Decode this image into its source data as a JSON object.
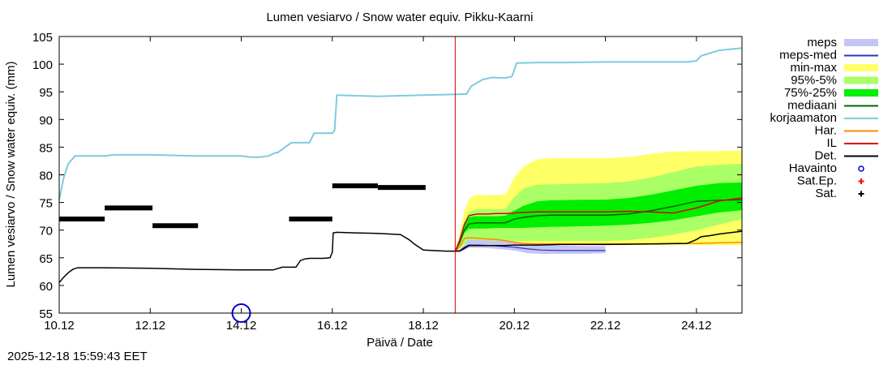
{
  "timestamp": "2025-12-18 15:59:43 EET",
  "chart_data": {
    "type": "line",
    "title": "Lumen vesiarvo / Snow water equiv.  Pikku-Kaarni",
    "xlabel": "Päivä / Date",
    "ylabel": "Lumen vesiarvo / Snow water equiv. (mm)",
    "ylim": [
      55,
      105
    ],
    "xlim": [
      0,
      15
    ],
    "yticks": [
      55,
      60,
      65,
      70,
      75,
      80,
      85,
      90,
      95,
      100,
      105
    ],
    "xticks": [
      {
        "x": 0,
        "label": "10.12"
      },
      {
        "x": 2,
        "label": "12.12"
      },
      {
        "x": 4,
        "label": "14.12"
      },
      {
        "x": 6,
        "label": "16.12"
      },
      {
        "x": 8,
        "label": "18.12"
      },
      {
        "x": 10,
        "label": "20.12"
      },
      {
        "x": 12,
        "label": "22.12"
      },
      {
        "x": 14,
        "label": "24.12"
      }
    ],
    "now_x": 8.7,
    "legend": [
      {
        "key": "meps",
        "label": "meps",
        "kind": "box",
        "color": "#c5c5f5"
      },
      {
        "key": "meps_med",
        "label": "meps-med",
        "kind": "line",
        "color": "#3333bb"
      },
      {
        "key": "minmax",
        "label": "min-max",
        "kind": "box",
        "color": "#ffff66"
      },
      {
        "key": "p95_5",
        "label": "95%-5%",
        "kind": "box",
        "color": "#aaff66"
      },
      {
        "key": "p75_25",
        "label": "75%-25%",
        "kind": "box",
        "color": "#00ee00"
      },
      {
        "key": "mediaani",
        "label": "mediaani",
        "kind": "line",
        "color": "#006600"
      },
      {
        "key": "korjaamaton",
        "label": "korjaamaton",
        "kind": "line",
        "color": "#7ecbe0"
      },
      {
        "key": "har",
        "label": "Har.",
        "kind": "line",
        "color": "#ff8800"
      },
      {
        "key": "il",
        "label": "IL",
        "kind": "line",
        "color": "#dd0000"
      },
      {
        "key": "det",
        "label": "Det.",
        "kind": "line",
        "color": "#000000"
      },
      {
        "key": "havainto",
        "label": "Havainto",
        "kind": "circle",
        "color": "#0000cc"
      },
      {
        "key": "satep",
        "label": "Sat.Ep.",
        "kind": "plus",
        "color": "#ff0000"
      },
      {
        "key": "sat",
        "label": "Sat.",
        "kind": "plus",
        "color": "#000000"
      }
    ],
    "series": {
      "korjaamaton": {
        "x": [
          0,
          0.1,
          0.2,
          0.35,
          0.5,
          1.0,
          1.2,
          2.0,
          3.0,
          4.0,
          4.2,
          4.4,
          4.6,
          4.75,
          4.8,
          5.1,
          5.2,
          5.5,
          5.6,
          6.0,
          6.05,
          6.1,
          6.5,
          7.0,
          8.0,
          8.5,
          8.95,
          9.05,
          9.3,
          9.5,
          9.8,
          9.95,
          10.05,
          10.5,
          11.0,
          12.0,
          13.0,
          13.8,
          14.0,
          14.1,
          14.3,
          14.5,
          15.0
        ],
        "y": [
          75.5,
          79.5,
          82.0,
          83.4,
          83.4,
          83.4,
          83.6,
          83.6,
          83.4,
          83.4,
          83.2,
          83.2,
          83.4,
          84.0,
          84.0,
          85.8,
          85.8,
          85.8,
          87.5,
          87.5,
          88.0,
          94.4,
          94.3,
          94.2,
          94.4,
          94.5,
          94.6,
          96.0,
          97.2,
          97.6,
          97.5,
          97.8,
          100.2,
          100.3,
          100.3,
          100.4,
          100.4,
          100.4,
          100.6,
          101.5,
          102.0,
          102.5,
          102.9
        ]
      },
      "det": {
        "x": [
          0,
          0.1,
          0.2,
          0.3,
          0.4,
          0.5,
          1.0,
          2.0,
          3.0,
          4.0,
          4.7,
          4.9,
          4.95,
          5.2,
          5.3,
          5.4,
          5.5,
          5.8,
          5.95,
          6.0,
          6.02,
          6.1,
          6.5,
          7.0,
          7.5,
          7.7,
          7.8,
          8.0,
          8.5,
          8.8,
          9.0,
          9.3,
          9.5,
          9.8,
          10.0,
          10.5,
          11.0,
          12.0,
          13.0,
          13.8,
          14.0,
          14.1,
          14.3,
          14.5,
          15.0
        ],
        "y": [
          60.5,
          61.5,
          62.3,
          62.9,
          63.2,
          63.2,
          63.2,
          63.1,
          62.9,
          62.8,
          62.8,
          63.3,
          63.3,
          63.3,
          64.5,
          64.8,
          64.9,
          64.9,
          65.0,
          66.0,
          69.5,
          69.6,
          69.5,
          69.4,
          69.2,
          68.2,
          67.5,
          66.4,
          66.2,
          66.2,
          67.2,
          67.2,
          67.2,
          67.2,
          67.3,
          67.3,
          67.4,
          67.4,
          67.5,
          67.6,
          68.3,
          68.8,
          69.0,
          69.3,
          69.8
        ]
      },
      "meps_band": {
        "x": [
          8.7,
          8.8,
          8.9,
          9.0,
          9.2,
          9.5,
          10.0,
          10.3,
          10.6,
          11.0,
          11.5,
          12.0
        ],
        "lo": [
          66.2,
          66.2,
          66.4,
          66.8,
          66.8,
          66.7,
          66.3,
          65.8,
          65.7,
          65.7,
          65.7,
          65.8
        ],
        "hi": [
          66.2,
          66.4,
          67.3,
          68.3,
          68.2,
          68.1,
          67.9,
          67.6,
          67.4,
          67.2,
          67.1,
          67.1
        ]
      },
      "meps_med": {
        "x": [
          8.7,
          8.8,
          8.9,
          9.0,
          9.2,
          9.5,
          10.0,
          10.3,
          10.6,
          11.0,
          11.5,
          12.0
        ],
        "y": [
          66.2,
          66.3,
          66.9,
          67.3,
          67.3,
          67.2,
          66.9,
          66.6,
          66.4,
          66.3,
          66.3,
          66.3
        ]
      },
      "ens_x": [
        8.7,
        8.8,
        8.9,
        9.0,
        9.1,
        9.2,
        9.4,
        9.6,
        9.8,
        10.0,
        10.2,
        10.5,
        10.8,
        11.0,
        11.5,
        12.0,
        12.5,
        13.0,
        13.5,
        14.0,
        14.5,
        15.0
      ],
      "minmax_lo": [
        66.2,
        66.6,
        67.2,
        67.3,
        67.3,
        67.3,
        67.3,
        67.3,
        67.3,
        67.3,
        67.3,
        67.3,
        67.3,
        67.3,
        67.3,
        67.3,
        67.3,
        67.3,
        67.3,
        67.3,
        67.3,
        67.3
      ],
      "minmax_hi": [
        66.2,
        69.5,
        73.5,
        75.5,
        76.2,
        76.4,
        76.3,
        76.4,
        76.4,
        79.5,
        81.5,
        82.8,
        83.0,
        83.0,
        83.0,
        83.0,
        83.2,
        83.8,
        84.2,
        84.3,
        84.3,
        84.4
      ],
      "p95_lo": [
        66.2,
        66.8,
        67.5,
        67.6,
        67.7,
        67.8,
        67.8,
        67.9,
        67.9,
        68.0,
        68.0,
        68.0,
        68.0,
        68.0,
        68.0,
        68.0,
        68.2,
        68.6,
        69.2,
        70.0,
        71.0,
        72.0
      ],
      "p95_hi": [
        66.2,
        68.8,
        71.5,
        73.2,
        73.6,
        73.8,
        73.8,
        73.8,
        73.8,
        76.0,
        77.5,
        78.2,
        78.3,
        78.3,
        78.4,
        78.5,
        78.8,
        79.5,
        80.5,
        81.5,
        81.8,
        82.0
      ],
      "p75_lo": [
        66.2,
        67.5,
        69.5,
        70.2,
        70.3,
        70.3,
        70.3,
        70.4,
        70.4,
        70.4,
        70.4,
        70.5,
        70.6,
        70.6,
        70.7,
        70.8,
        71.0,
        71.3,
        71.8,
        72.5,
        73.2,
        73.6
      ],
      "p75_hi": [
        66.2,
        68.5,
        71.3,
        72.3,
        72.5,
        72.5,
        72.5,
        72.5,
        72.6,
        73.5,
        74.4,
        75.2,
        75.4,
        75.4,
        75.5,
        75.5,
        75.8,
        76.4,
        77.2,
        78.0,
        78.5,
        78.6
      ],
      "mediaani": [
        66.2,
        67.8,
        70.0,
        71.1,
        71.2,
        71.3,
        71.3,
        71.3,
        71.3,
        72.0,
        72.3,
        72.6,
        72.7,
        72.7,
        72.7,
        72.7,
        72.9,
        73.5,
        74.3,
        75.2,
        75.4,
        75.5
      ],
      "har": [
        66.2,
        67.0,
        68.5,
        68.6,
        68.6,
        68.5,
        68.4,
        68.3,
        68.1,
        67.8,
        67.6,
        67.5,
        67.5,
        67.5,
        67.5,
        67.5,
        67.5,
        67.5,
        67.6,
        67.6,
        67.7,
        67.8
      ],
      "il": [
        66.2,
        68.2,
        71.0,
        72.6,
        72.8,
        72.9,
        72.9,
        73.0,
        73.0,
        73.1,
        73.2,
        73.3,
        73.3,
        73.3,
        73.3,
        73.3,
        73.4,
        73.3,
        73.1,
        74.0,
        75.3,
        75.8
      ],
      "sat": [
        {
          "x0": 0.0,
          "x1": 1.0,
          "y": 72.0
        },
        {
          "x0": 1.0,
          "x1": 2.05,
          "y": 74.0
        },
        {
          "x0": 2.05,
          "x1": 3.05,
          "y": 70.8
        },
        {
          "x0": 5.05,
          "x1": 6.0,
          "y": 72.0
        },
        {
          "x0": 6.0,
          "x1": 7.0,
          "y": 78.0
        },
        {
          "x0": 7.0,
          "x1": 8.05,
          "y": 77.7
        }
      ],
      "havainto": [
        {
          "x": 4.0,
          "y": 55.0
        }
      ]
    }
  }
}
